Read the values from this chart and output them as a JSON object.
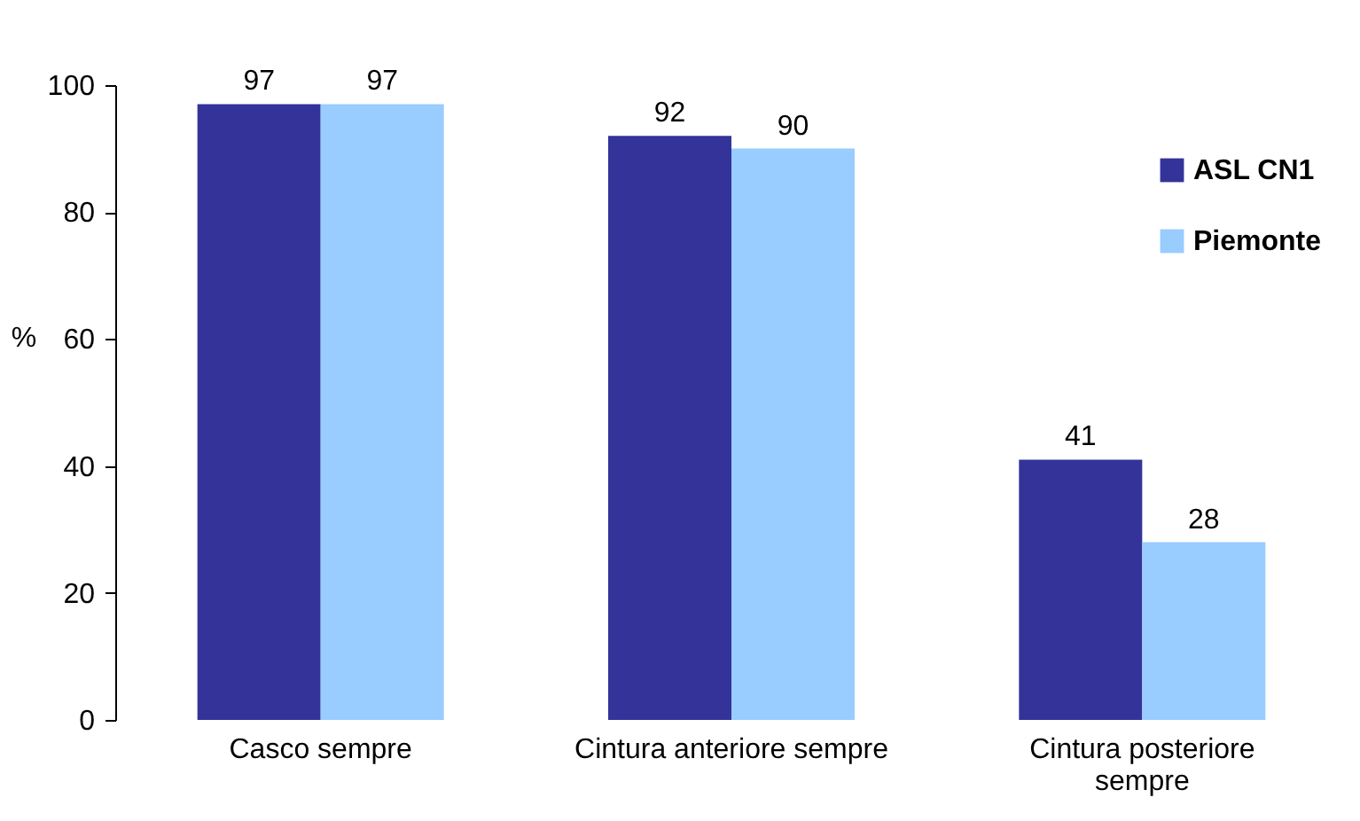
{
  "chart_data": {
    "type": "bar",
    "ylabel": "%",
    "categories": [
      "Casco sempre",
      "Cintura anteriore sempre",
      "Cintura posteriore sempre"
    ],
    "series": [
      {
        "name": "ASL CN1",
        "color": "#333399",
        "values": [
          97,
          92,
          41
        ]
      },
      {
        "name": "Piemonte",
        "color": "#99ccff",
        "values": [
          97,
          90,
          28
        ]
      }
    ],
    "ylim": [
      0,
      100
    ],
    "yticks": [
      0,
      20,
      40,
      60,
      80,
      100
    ],
    "grid": false,
    "legend": "top right",
    "data_labels": true
  }
}
